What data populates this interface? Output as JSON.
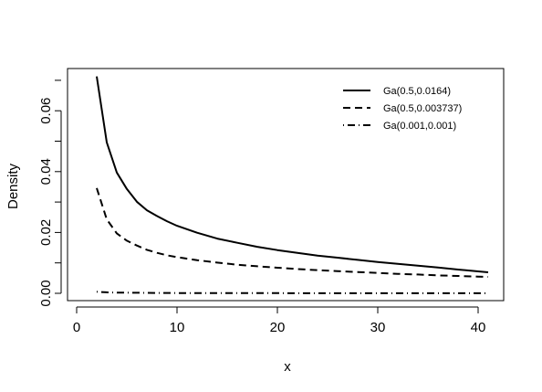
{
  "chart_data": {
    "type": "line",
    "title": "",
    "xlabel": "x",
    "ylabel": "Density",
    "xlim": [
      0,
      42
    ],
    "ylim": [
      0,
      0.072
    ],
    "x_ticks": [
      0,
      10,
      20,
      30,
      40
    ],
    "x_tick_labels": [
      "0",
      "10",
      "20",
      "30",
      "40"
    ],
    "y_ticks": [
      0,
      0.02,
      0.04,
      0.06
    ],
    "y_tick_labels": [
      "0.00",
      "0.02",
      "0.04",
      "0.06"
    ],
    "legend_position": "top-right",
    "grid": false,
    "series": [
      {
        "name": "Ga(0.5,0.0164)",
        "style": "solid",
        "x": [
          2,
          3,
          4,
          5,
          6,
          7,
          8,
          9,
          10,
          12,
          14,
          16,
          18,
          20,
          22,
          24,
          26,
          28,
          30,
          32,
          34,
          36,
          38,
          40,
          41
        ],
        "y": [
          0.0713,
          0.0496,
          0.0397,
          0.0343,
          0.0301,
          0.0273,
          0.0254,
          0.0237,
          0.0222,
          0.0199,
          0.018,
          0.0166,
          0.0153,
          0.0142,
          0.0133,
          0.0124,
          0.0117,
          0.011,
          0.0103,
          0.0097,
          0.0091,
          0.0085,
          0.0078,
          0.0072,
          0.0069
        ]
      },
      {
        "name": "Ga(0.5,0.003737)",
        "style": "dashed",
        "x": [
          2,
          3,
          4,
          5,
          6,
          7,
          8,
          9,
          10,
          12,
          14,
          16,
          18,
          20,
          22,
          24,
          26,
          28,
          30,
          32,
          34,
          36,
          38,
          40,
          41
        ],
        "y": [
          0.0346,
          0.0243,
          0.0197,
          0.0173,
          0.0157,
          0.0143,
          0.0133,
          0.0125,
          0.0119,
          0.0109,
          0.0101,
          0.0094,
          0.0089,
          0.0084,
          0.008,
          0.0076,
          0.0073,
          0.007,
          0.0067,
          0.0064,
          0.0062,
          0.0059,
          0.0057,
          0.0055,
          0.0054
        ]
      },
      {
        "name": "Ga(0.001,0.001)",
        "style": "dotdash",
        "x": [
          2,
          3,
          4,
          5,
          6,
          8,
          10,
          15,
          20,
          25,
          30,
          35,
          40,
          41
        ],
        "y": [
          0.0005,
          0.00033,
          0.00025,
          0.0002,
          0.00017,
          0.00012,
          0.0001,
          7e-05,
          5e-05,
          4e-05,
          3e-05,
          3e-05,
          2e-05,
          2e-05
        ]
      }
    ]
  }
}
